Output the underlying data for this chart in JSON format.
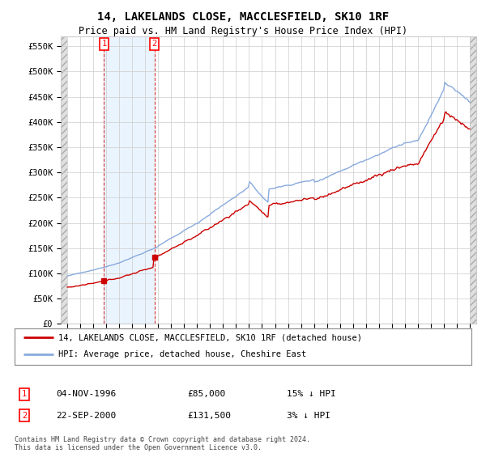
{
  "title": "14, LAKELANDS CLOSE, MACCLESFIELD, SK10 1RF",
  "subtitle": "Price paid vs. HM Land Registry's House Price Index (HPI)",
  "ylim": [
    0,
    570000
  ],
  "yticks": [
    0,
    50000,
    100000,
    150000,
    200000,
    250000,
    300000,
    350000,
    400000,
    450000,
    500000,
    550000
  ],
  "ytick_labels": [
    "£0",
    "£50K",
    "£100K",
    "£150K",
    "£200K",
    "£250K",
    "£300K",
    "£350K",
    "£400K",
    "£450K",
    "£500K",
    "£550K"
  ],
  "legend_entry1": "14, LAKELANDS CLOSE, MACCLESFIELD, SK10 1RF (detached house)",
  "legend_entry2": "HPI: Average price, detached house, Cheshire East",
  "transaction1_date": "04-NOV-1996",
  "transaction1_price": 85000,
  "transaction1_note": "15% ↓ HPI",
  "transaction2_date": "22-SEP-2000",
  "transaction2_price": 131500,
  "transaction2_note": "3% ↓ HPI",
  "footer": "Contains HM Land Registry data © Crown copyright and database right 2024.\nThis data is licensed under the Open Government Licence v3.0.",
  "line_color_property": "#cc0000",
  "line_color_hpi": "#88aadd",
  "grid_color": "#cccccc",
  "bg_color": "#ffffff",
  "t1_year": 1996.833,
  "t2_year": 2000.708,
  "hpi_base": 95000,
  "prop_base": 80000
}
